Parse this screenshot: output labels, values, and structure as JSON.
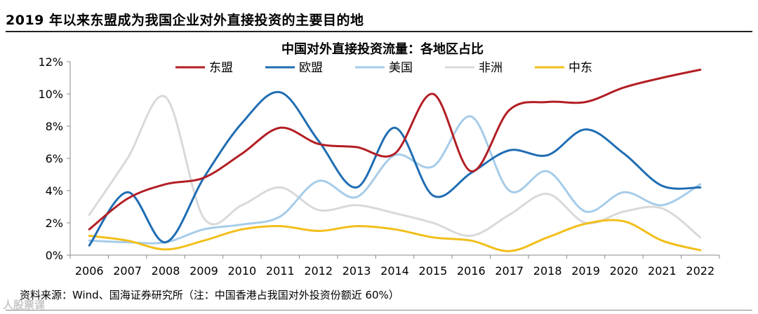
{
  "page_title": "2019 年以来东盟成为我国企业对外直接投资的主要目的地",
  "source_note": "资料来源：Wind、国海证券研究所（注：中国香港占我国对外投资份额近 60%）",
  "watermark": "人股票课",
  "colors": {
    "东盟": "#b21e24",
    "欧盟": "#1f6db3",
    "美国": "#a6cce9",
    "非洲": "#d9d9d9",
    "中东": "#f2be1a"
  },
  "chart_data": {
    "type": "line",
    "title": "中国对外直接投资流量：各地区占比",
    "xlabel": "",
    "ylabel": "",
    "categories": [
      "2006",
      "2007",
      "2008",
      "2009",
      "2010",
      "2011",
      "2012",
      "2013",
      "2014",
      "2015",
      "2016",
      "2017",
      "2018",
      "2019",
      "2020",
      "2021",
      "2022"
    ],
    "ylim": [
      0,
      12
    ],
    "yticks": [
      0,
      2,
      4,
      6,
      8,
      10,
      12
    ],
    "ytick_labels": [
      "0%",
      "2%",
      "4%",
      "6%",
      "8%",
      "10%",
      "12%"
    ],
    "y_unit": "%",
    "grid": false,
    "legend_position": "top",
    "series": [
      {
        "name": "东盟",
        "values": [
          1.6,
          3.5,
          4.4,
          4.8,
          6.3,
          7.9,
          6.9,
          6.7,
          6.3,
          10.0,
          5.2,
          9.0,
          9.5,
          9.5,
          10.4,
          11.0,
          11.5
        ]
      },
      {
        "name": "欧盟",
        "values": [
          0.6,
          3.9,
          0.8,
          4.8,
          8.2,
          10.1,
          7.1,
          4.2,
          7.9,
          3.7,
          5.1,
          6.5,
          6.2,
          7.8,
          6.3,
          4.3,
          4.2
        ]
      },
      {
        "name": "美国",
        "values": [
          0.9,
          0.8,
          0.8,
          1.6,
          1.9,
          2.4,
          4.6,
          3.6,
          6.2,
          5.5,
          8.6,
          4.0,
          5.2,
          2.7,
          3.9,
          3.1,
          4.4
        ]
      },
      {
        "name": "非洲",
        "values": [
          2.5,
          6.0,
          9.8,
          2.3,
          3.1,
          4.2,
          2.8,
          3.1,
          2.6,
          2.0,
          1.2,
          2.5,
          3.8,
          2.0,
          2.7,
          2.9,
          1.1
        ]
      },
      {
        "name": "中东",
        "values": [
          1.2,
          0.9,
          0.35,
          0.9,
          1.6,
          1.8,
          1.5,
          1.8,
          1.6,
          1.1,
          0.9,
          0.25,
          1.1,
          1.95,
          2.1,
          0.9,
          0.3
        ]
      }
    ]
  }
}
